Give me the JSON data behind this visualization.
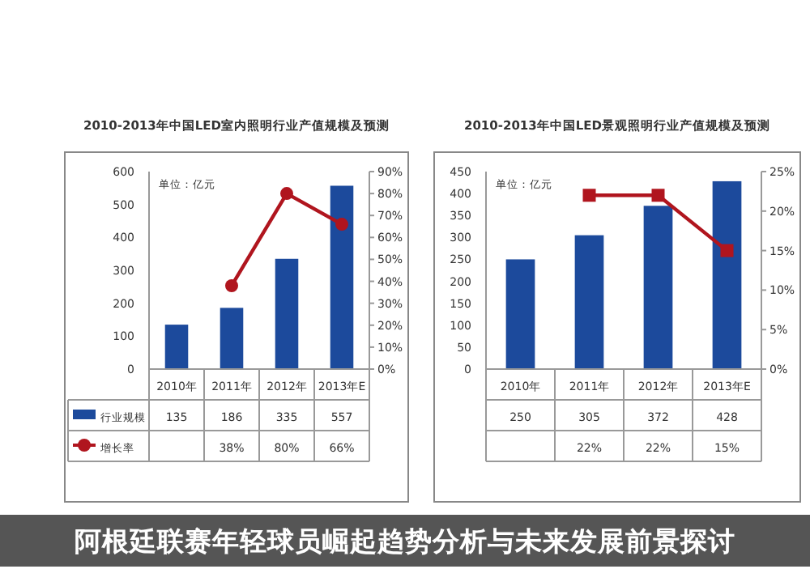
{
  "chart_data": [
    {
      "type": "bar",
      "title": "2010-2013年中国LED室内照明行业产值规模及预测",
      "categories": [
        "2010年",
        "2011年",
        "2012年",
        "2013年E"
      ],
      "series": [
        {
          "name": "行业规模",
          "color": "#1c4a9c",
          "values": [
            135,
            186,
            335,
            557
          ],
          "value_labels": [
            "135",
            "186",
            "335",
            "557"
          ]
        },
        {
          "name": "增长率",
          "type": "line",
          "axis": "y2",
          "color": "#b0151e",
          "marker": "circle",
          "values": [
            null,
            38,
            80,
            66
          ],
          "value_labels": [
            null,
            "38%",
            "80%",
            "66%"
          ]
        }
      ],
      "ylim": [
        0,
        600
      ],
      "yticks": [
        0,
        100,
        200,
        300,
        400,
        500,
        600
      ],
      "y2lim": [
        0,
        90
      ],
      "y2ticks": [
        {
          "value": 0,
          "label": "0%"
        },
        {
          "value": 10,
          "label": "10%"
        },
        {
          "value": 20,
          "label": "20%"
        },
        {
          "value": 30,
          "label": "30%"
        },
        {
          "value": 40,
          "label": "40%"
        },
        {
          "value": 50,
          "label": "50%"
        },
        {
          "value": 60,
          "label": "60%"
        },
        {
          "value": 70,
          "label": "70%"
        },
        {
          "value": 80,
          "label": "80%"
        },
        {
          "value": 90,
          "label": "90%"
        }
      ],
      "legend": "bottom left",
      "annotations": [
        "单位：亿元",
        "阿根廷联赛年轻球员崛起趋势分析与未来发展前景探讨"
      ]
    },
    {
      "type": "bar",
      "title": "2010-2013年中国LED景观照明行业产值规模及预测",
      "categories": [
        "2010年",
        "2011年",
        "2012年",
        "2013年E"
      ],
      "series": [
        {
          "color": "#1c4a9c",
          "values": [
            250,
            305,
            372,
            428
          ],
          "value_labels": [
            "250",
            "305",
            "372",
            "428"
          ]
        },
        {
          "type": "line",
          "axis": "y2",
          "color": "#b0151e",
          "marker": "square",
          "values": [
            null,
            22,
            22,
            15
          ],
          "value_labels": [
            null,
            "22%",
            "22%",
            "15%"
          ]
        }
      ],
      "ylim": [
        0,
        450
      ],
      "yticks": [
        0,
        50,
        100,
        150,
        200,
        250,
        300,
        350,
        400,
        450
      ],
      "y2lim": [
        0,
        25
      ],
      "y2ticks": [
        {
          "value": 0,
          "label": "0%"
        },
        {
          "value": 5,
          "label": "5%"
        },
        {
          "value": 10,
          "label": "10%"
        },
        {
          "value": 15,
          "label": "15%"
        },
        {
          "value": 20,
          "label": "20%"
        },
        {
          "value": 25,
          "label": "25%"
        }
      ],
      "annotations": [
        "单位：亿元"
      ]
    }
  ]
}
